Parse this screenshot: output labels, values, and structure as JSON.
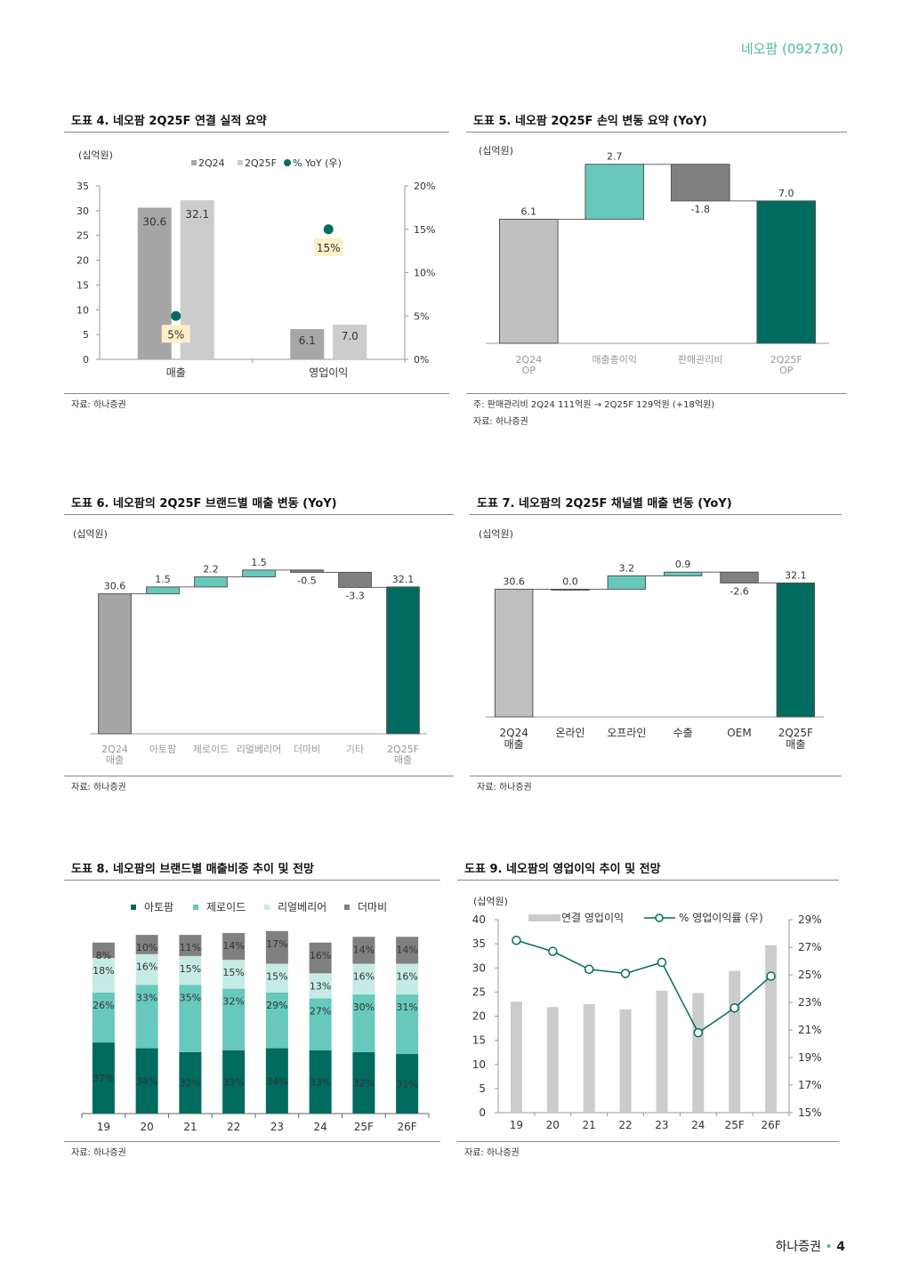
{
  "header": {
    "company_code": "네오팜 (092730)"
  },
  "footer": {
    "brand": "하나증권",
    "sep": "•",
    "page": "4"
  },
  "colors": {
    "dark_teal": "#006b5f",
    "mint": "#5fc8b8",
    "light_mint": "#bfe8e0",
    "dark_gray": "#7f7f7f",
    "mid_gray": "#a6a6a6",
    "light_gray": "#cccccc",
    "accent": "#4fb8a5"
  },
  "panels": {
    "p4": {
      "title": "도표 4. 네오팜 2Q25F 연결 실적 요약",
      "unit": "(십억원)",
      "source": "자료: 하나증권"
    },
    "p5": {
      "title": "도표 5. 네오팜 2Q25F 손익 변동 요약 (YoY)",
      "unit": "(십억원)",
      "note": "주: 판매관리비 2Q24 111억원 → 2Q25F 129억원 (+18억원)",
      "source": "자료: 하나증권"
    },
    "p6": {
      "title": "도표 6. 네오팜의 2Q25F 브랜드별 매출 변동 (YoY)",
      "unit": "(십억원)",
      "source": "자료: 하나증권"
    },
    "p7": {
      "title": "도표 7. 네오팜의 2Q25F 채널별 매출 변동 (YoY)",
      "unit": "(십억원)",
      "source": "자료: 하나증권"
    },
    "p8": {
      "title": "도표 8. 네오팜의 브랜드별 매출비중 추이 및 전망",
      "source": "자료: 하나증권"
    },
    "p9": {
      "title": "도표 9. 네오팜의 영업이익 추이 및 전망",
      "unit": "(십억원)",
      "source": "자료: 하나증권"
    }
  },
  "chart_data": [
    {
      "id": "p4",
      "type": "bar",
      "categories": [
        "매출",
        "영업이익"
      ],
      "series": [
        {
          "name": "2Q24",
          "values": [
            30.6,
            6.1
          ],
          "labels": [
            "30.6",
            "6.1"
          ],
          "color": "#a6a6a6"
        },
        {
          "name": "2Q25F",
          "values": [
            32.1,
            7.0
          ],
          "labels": [
            "32.1",
            "7.0"
          ],
          "color": "#cccccc"
        }
      ],
      "yoy": {
        "name": "% YoY (우)",
        "values": [
          5,
          15
        ],
        "labels": [
          "5%",
          "15%"
        ],
        "color": "#006b5f"
      },
      "ylim": [
        0,
        35
      ],
      "yticks": [
        "0",
        "5",
        "10",
        "15",
        "20",
        "25",
        "30",
        "35"
      ],
      "y2lim": [
        0,
        20
      ],
      "y2ticks": [
        "0%",
        "5%",
        "10%",
        "15%",
        "20%"
      ],
      "legend": "top-center"
    },
    {
      "id": "p5",
      "type": "bar",
      "subtype": "waterfall",
      "categories": [
        {
          "l1": "2Q24",
          "l2": "OP"
        },
        {
          "l1": "매출총이익",
          "l2": ""
        },
        {
          "l1": "판매관리비",
          "l2": ""
        },
        {
          "l1": "2Q25F",
          "l2": "OP"
        }
      ],
      "values": [
        6.1,
        2.7,
        -1.8,
        7.0
      ],
      "labels": [
        "6.1",
        "2.7",
        "-1.8",
        "7.0"
      ],
      "kinds": [
        "total",
        "delta",
        "delta",
        "total"
      ],
      "colors": [
        "#c0c0c0",
        "#66c9bb",
        "#808080",
        "#006b5f"
      ]
    },
    {
      "id": "p6",
      "type": "bar",
      "subtype": "waterfall",
      "categories": [
        {
          "l1": "2Q24",
          "l2": "매출"
        },
        {
          "l1": "아토팜",
          "l2": ""
        },
        {
          "l1": "제로이드",
          "l2": ""
        },
        {
          "l1": "리얼베리어",
          "l2": ""
        },
        {
          "l1": "더마비",
          "l2": ""
        },
        {
          "l1": "기타",
          "l2": ""
        },
        {
          "l1": "2Q25F",
          "l2": "매출"
        }
      ],
      "values": [
        30.6,
        1.5,
        2.2,
        1.5,
        -0.5,
        -3.3,
        32.1
      ],
      "labels": [
        "30.6",
        "1.5",
        "2.2",
        "1.5",
        "-0.5",
        "-3.3",
        "32.1"
      ],
      "kinds": [
        "total",
        "delta",
        "delta",
        "delta",
        "delta",
        "delta",
        "total"
      ],
      "colors": [
        "#a6a6a6",
        "#66c9bb",
        "#66c9bb",
        "#66c9bb",
        "#808080",
        "#808080",
        "#006b5f"
      ]
    },
    {
      "id": "p7",
      "type": "bar",
      "subtype": "waterfall",
      "categories": [
        {
          "l1": "2Q24",
          "l2": "매출"
        },
        {
          "l1": "온라인",
          "l2": ""
        },
        {
          "l1": "오프라인",
          "l2": ""
        },
        {
          "l1": "수출",
          "l2": ""
        },
        {
          "l1": "OEM",
          "l2": ""
        },
        {
          "l1": "2Q25F",
          "l2": "매출"
        }
      ],
      "values": [
        30.6,
        0.0,
        3.2,
        0.9,
        -2.6,
        32.1
      ],
      "labels": [
        "30.6",
        "0.0",
        "3.2",
        "0.9",
        "-2.6",
        "32.1"
      ],
      "kinds": [
        "total",
        "delta",
        "delta",
        "delta",
        "delta",
        "total"
      ],
      "colors": [
        "#bfbfbf",
        "#66c9bb",
        "#66c9bb",
        "#66c9bb",
        "#808080",
        "#006b5f"
      ]
    },
    {
      "id": "p8",
      "type": "bar",
      "subtype": "stacked-100",
      "categories": [
        "19",
        "20",
        "21",
        "22",
        "23",
        "24",
        "25F",
        "26F"
      ],
      "series": [
        {
          "name": "아토팜",
          "values": [
            37,
            34,
            32,
            33,
            34,
            33,
            32,
            31
          ],
          "color": "#006b5f"
        },
        {
          "name": "제로이드",
          "values": [
            26,
            33,
            35,
            32,
            29,
            27,
            30,
            31
          ],
          "color": "#66c9bb"
        },
        {
          "name": "리얼베리어",
          "values": [
            18,
            16,
            15,
            15,
            15,
            13,
            16,
            16
          ],
          "color": "#c5ebe4"
        },
        {
          "name": "더마비",
          "values": [
            8,
            10,
            11,
            14,
            17,
            16,
            14,
            14
          ],
          "color": "#808080"
        }
      ],
      "legend": "top-center"
    },
    {
      "id": "p9",
      "type": "bar",
      "subtype": "bar-line",
      "categories": [
        "19",
        "20",
        "21",
        "22",
        "23",
        "24",
        "25F",
        "26F"
      ],
      "bars": {
        "name": "연결 영업이익",
        "values": [
          23.0,
          21.9,
          22.5,
          21.4,
          25.3,
          24.8,
          29.4,
          34.7
        ],
        "color": "#cccccc"
      },
      "line": {
        "name": "% 영업이익률 (우)",
        "values": [
          27.5,
          26.7,
          25.4,
          25.1,
          25.9,
          20.8,
          22.6,
          24.9
        ],
        "color": "#006b5f"
      },
      "ylim": [
        0,
        40
      ],
      "yticks": [
        "0",
        "5",
        "10",
        "15",
        "20",
        "25",
        "30",
        "35",
        "40"
      ],
      "y2lim": [
        15,
        29
      ],
      "y2ticks": [
        "15%",
        "17%",
        "19%",
        "21%",
        "23%",
        "25%",
        "27%",
        "29%"
      ],
      "legend": "top-center"
    }
  ]
}
